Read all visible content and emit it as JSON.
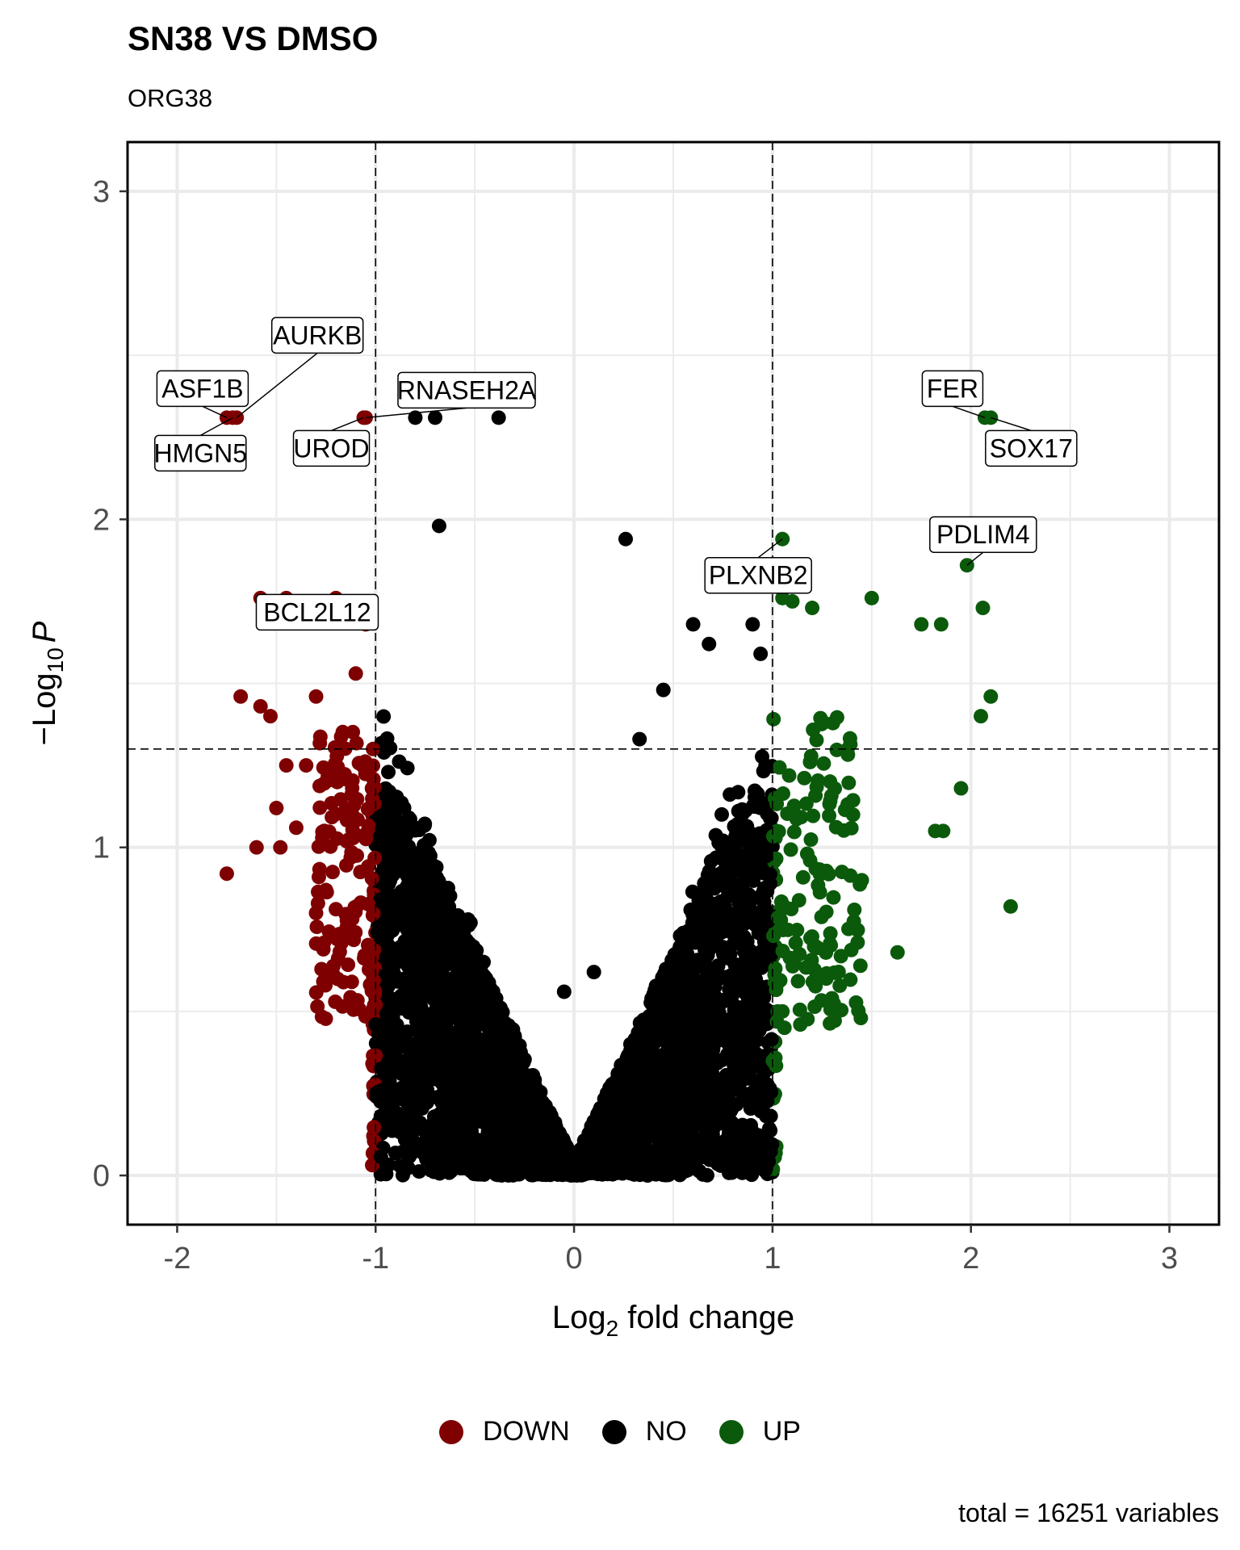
{
  "chart_data": {
    "type": "scatter",
    "title": "SN38 VS DMSO",
    "subtitle": "ORG38",
    "xlabel_base": "Log",
    "xlabel_sub": "2",
    "xlabel_rest": " fold change",
    "ylabel_base": "−Log",
    "ylabel_sub": "10",
    "ylabel_rest": "P",
    "xlim": [
      -2.25,
      3.25
    ],
    "ylim": [
      -0.15,
      3.15
    ],
    "x_ticks": [
      -2,
      -1,
      0,
      1,
      2,
      3
    ],
    "y_ticks": [
      0,
      1,
      2,
      3
    ],
    "thresholds": {
      "fc": [
        -1,
        1
      ],
      "p": 1.3
    },
    "grid": true,
    "legend_position": "bottom",
    "colors": {
      "DOWN": "#7f0000",
      "NO": "#000000",
      "UP": "#0b5a0b"
    },
    "legend": [
      {
        "name": "DOWN",
        "color": "#7f0000"
      },
      {
        "name": "NO",
        "color": "#000000"
      },
      {
        "name": "UP",
        "color": "#0b5a0b"
      }
    ],
    "caption": "total = 16251 variables",
    "labeled_points": [
      {
        "gene": "ASF1B",
        "x": -1.75,
        "y": 2.31,
        "group": "DOWN"
      },
      {
        "gene": "HMGN5",
        "x": -1.72,
        "y": 2.31,
        "group": "DOWN"
      },
      {
        "gene": "AURKB",
        "x": -1.7,
        "y": 2.31,
        "group": "DOWN"
      },
      {
        "gene": "UROD",
        "x": -1.06,
        "y": 2.31,
        "group": "DOWN"
      },
      {
        "gene": "RNASEH2A",
        "x": -1.05,
        "y": 2.31,
        "group": "DOWN"
      },
      {
        "gene": "BCL2L12",
        "x": -1.05,
        "y": 1.68,
        "group": "DOWN"
      },
      {
        "gene": "PLXNB2",
        "x": 1.05,
        "y": 1.94,
        "group": "UP"
      },
      {
        "gene": "FER",
        "x": 2.07,
        "y": 2.31,
        "group": "UP"
      },
      {
        "gene": "SOX17",
        "x": 2.1,
        "y": 2.31,
        "group": "UP"
      },
      {
        "gene": "PDLIM4",
        "x": 1.98,
        "y": 1.86,
        "group": "UP"
      }
    ],
    "highlight_points": [
      {
        "x": -0.8,
        "y": 2.31,
        "group": "NO"
      },
      {
        "x": -0.7,
        "y": 2.31,
        "group": "NO"
      },
      {
        "x": -0.38,
        "y": 2.31,
        "group": "NO"
      },
      {
        "x": -0.68,
        "y": 1.98,
        "group": "NO"
      },
      {
        "x": 0.26,
        "y": 1.94,
        "group": "NO"
      },
      {
        "x": -1.58,
        "y": 1.76,
        "group": "DOWN"
      },
      {
        "x": -1.45,
        "y": 1.76,
        "group": "DOWN"
      },
      {
        "x": -1.2,
        "y": 1.76,
        "group": "DOWN"
      },
      {
        "x": -1.1,
        "y": 1.53,
        "group": "DOWN"
      },
      {
        "x": -1.68,
        "y": 1.46,
        "group": "DOWN"
      },
      {
        "x": -1.58,
        "y": 1.43,
        "group": "DOWN"
      },
      {
        "x": -1.53,
        "y": 1.4,
        "group": "DOWN"
      },
      {
        "x": -1.3,
        "y": 1.46,
        "group": "DOWN"
      },
      {
        "x": -1.35,
        "y": 1.25,
        "group": "DOWN"
      },
      {
        "x": -1.45,
        "y": 1.25,
        "group": "DOWN"
      },
      {
        "x": -1.5,
        "y": 1.12,
        "group": "DOWN"
      },
      {
        "x": -1.4,
        "y": 1.06,
        "group": "DOWN"
      },
      {
        "x": -1.6,
        "y": 1.0,
        "group": "DOWN"
      },
      {
        "x": -1.48,
        "y": 1.0,
        "group": "DOWN"
      },
      {
        "x": -1.75,
        "y": 0.92,
        "group": "DOWN"
      },
      {
        "x": -1.25,
        "y": 0.87,
        "group": "DOWN"
      },
      {
        "x": -1.3,
        "y": 0.8,
        "group": "DOWN"
      },
      {
        "x": -1.18,
        "y": 0.73,
        "group": "DOWN"
      },
      {
        "x": -1.12,
        "y": 0.59,
        "group": "DOWN"
      },
      {
        "x": -1.0,
        "y": 0.46,
        "group": "NO"
      },
      {
        "x": -0.88,
        "y": 0.41,
        "group": "NO"
      },
      {
        "x": -0.87,
        "y": 0.31,
        "group": "NO"
      },
      {
        "x": -0.61,
        "y": 0.2,
        "group": "NO"
      },
      {
        "x": -0.05,
        "y": 0.56,
        "group": "NO"
      },
      {
        "x": 0.1,
        "y": 0.62,
        "group": "NO"
      },
      {
        "x": 0.33,
        "y": 1.33,
        "group": "NO"
      },
      {
        "x": 0.6,
        "y": 1.68,
        "group": "NO"
      },
      {
        "x": 0.68,
        "y": 1.62,
        "group": "NO"
      },
      {
        "x": 0.9,
        "y": 1.68,
        "group": "NO"
      },
      {
        "x": 0.94,
        "y": 1.59,
        "group": "NO"
      },
      {
        "x": 0.45,
        "y": 1.48,
        "group": "NO"
      },
      {
        "x": 1.05,
        "y": 1.76,
        "group": "UP"
      },
      {
        "x": 1.1,
        "y": 1.75,
        "group": "UP"
      },
      {
        "x": 1.2,
        "y": 1.73,
        "group": "UP"
      },
      {
        "x": 1.5,
        "y": 1.76,
        "group": "UP"
      },
      {
        "x": 1.75,
        "y": 1.68,
        "group": "UP"
      },
      {
        "x": 1.85,
        "y": 1.68,
        "group": "UP"
      },
      {
        "x": 2.06,
        "y": 1.73,
        "group": "UP"
      },
      {
        "x": 2.05,
        "y": 1.4,
        "group": "UP"
      },
      {
        "x": 2.1,
        "y": 1.46,
        "group": "UP"
      },
      {
        "x": 1.95,
        "y": 1.18,
        "group": "UP"
      },
      {
        "x": 1.82,
        "y": 1.05,
        "group": "UP"
      },
      {
        "x": 1.86,
        "y": 1.05,
        "group": "UP"
      },
      {
        "x": 2.2,
        "y": 0.82,
        "group": "UP"
      },
      {
        "x": 1.63,
        "y": 0.68,
        "group": "UP"
      },
      {
        "x": 1.45,
        "y": 0.9,
        "group": "UP"
      },
      {
        "x": 1.22,
        "y": 0.6,
        "group": "UP"
      },
      {
        "x": 1.14,
        "y": 0.46,
        "group": "UP"
      },
      {
        "x": 1.05,
        "y": 0.5,
        "group": "UP"
      }
    ]
  }
}
